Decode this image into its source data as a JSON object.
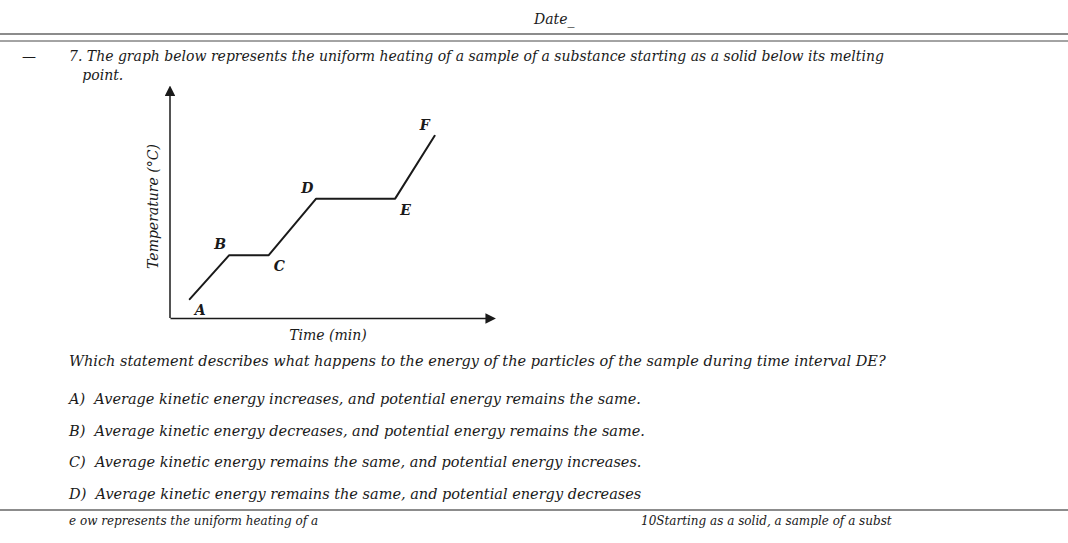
{
  "chart_data": {
    "type": "line",
    "color": "#1a1a1a",
    "x": [
      0.0,
      1.0,
      2.0,
      3.2,
      5.2,
      6.2
    ],
    "values": [
      0.0,
      1.4,
      1.4,
      3.2,
      3.2,
      5.2
    ],
    "annotations": [
      "A",
      "B",
      "C",
      "D",
      "E",
      "F"
    ],
    "xlabel": "Time (min)",
    "ylabel": "Temperature (°C)",
    "xlim": [
      -0.5,
      7.5
    ],
    "ylim": [
      -0.6,
      6.5
    ],
    "tick_labels": false,
    "grid": false
  },
  "page": {
    "header": "Date_",
    "margin_mark": "—",
    "intro": [
      "7. The graph below represents the uniform heating of a sample of a substance starting as a solid below its melting",
      "   point."
    ],
    "question": "Which statement describes what happens to the energy of the particles of the sample during time interval DE?",
    "answers": [
      "A)  Average kinetic energy increases, and potential energy remains the same.",
      "B)  Average kinetic energy decreases, and potential energy remains the same.",
      "C)  Average kinetic energy remains the same, and potential energy increases.",
      "D)  Average kinetic energy remains the same, and potential energy decreases"
    ],
    "footer": [
      "e ow represents the uniform heating of a",
      "10Starting as a solid, a sample of a subst"
    ]
  }
}
